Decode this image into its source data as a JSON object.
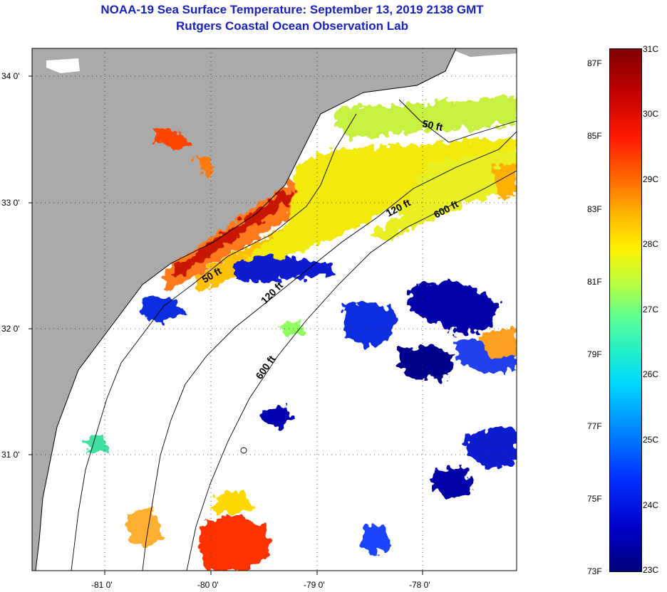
{
  "title_line1": "NOAA-19 Sea Surface Temperature:  September 13, 2019 2138 GMT",
  "title_line2": "Rutgers Coastal Ocean Observation Lab",
  "lat_labels": [
    "34 0'",
    "33 0'",
    "32 0'",
    "31 0'"
  ],
  "lon_labels": [
    "-81 0'",
    "-80 0'",
    "-79 0'",
    "-78 0'"
  ],
  "contours": {
    "c50_a": "50 ft",
    "c50_b": "50 ft",
    "c120_a": "120 ft",
    "c120_b": "120 ft",
    "c600_a": "600 ft",
    "c600_b": "600 ft"
  },
  "colorbar": {
    "fahrenheit": [
      "87F",
      "85F",
      "83F",
      "81F",
      "79F",
      "77F",
      "75F",
      "73F"
    ],
    "celsius": [
      "31C",
      "30C",
      "29C",
      "28C",
      "27C",
      "26C",
      "25C",
      "24C",
      "23C"
    ]
  },
  "colors": {
    "land": "#aaaaaa",
    "title": "#1a22b8"
  }
}
